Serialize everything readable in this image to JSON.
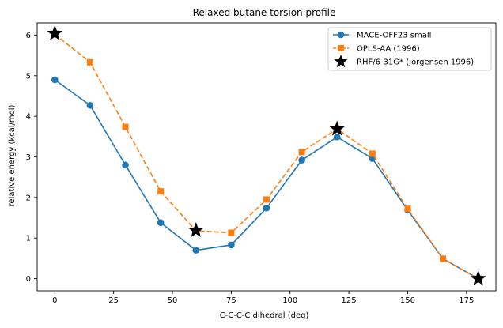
{
  "chart_data": {
    "type": "line",
    "title": "Relaxed butane torsion profile",
    "xlabel": "C-C-C-C dihedral (deg)",
    "ylabel": "relative energy (kcal/mol)",
    "xlim": [
      -7.5,
      187.5
    ],
    "ylim": [
      -0.3,
      6.3
    ],
    "xticks": [
      0,
      25,
      50,
      75,
      100,
      125,
      150,
      175
    ],
    "yticks": [
      0,
      1,
      2,
      3,
      4,
      5,
      6
    ],
    "grid": false,
    "legend_position": "top-right",
    "series": [
      {
        "name": "MACE-OFF23 small",
        "color": "#1f77b4",
        "marker": "circle",
        "linestyle": "solid",
        "x": [
          0,
          15,
          30,
          45,
          60,
          75,
          90,
          105,
          120,
          135,
          150,
          165,
          180
        ],
        "y": [
          4.9,
          4.27,
          2.8,
          1.38,
          0.7,
          0.83,
          1.74,
          2.92,
          3.49,
          2.96,
          1.69,
          0.49,
          0.0
        ]
      },
      {
        "name": "OPLS-AA (1996)",
        "color": "#ff7f0e",
        "marker": "square",
        "linestyle": "dashed",
        "x": [
          0,
          15,
          30,
          45,
          60,
          75,
          90,
          105,
          120,
          135,
          150,
          165,
          180
        ],
        "y": [
          6.02,
          5.33,
          3.74,
          2.15,
          1.18,
          1.13,
          1.95,
          3.12,
          3.69,
          3.08,
          1.72,
          0.49,
          0.0
        ]
      },
      {
        "name": "RHF/6-31G* (Jorgensen 1996)",
        "color": "#000000",
        "marker": "star",
        "linestyle": "none",
        "x": [
          0,
          60,
          120,
          180
        ],
        "y": [
          6.04,
          1.19,
          3.69,
          0.0
        ]
      }
    ]
  }
}
